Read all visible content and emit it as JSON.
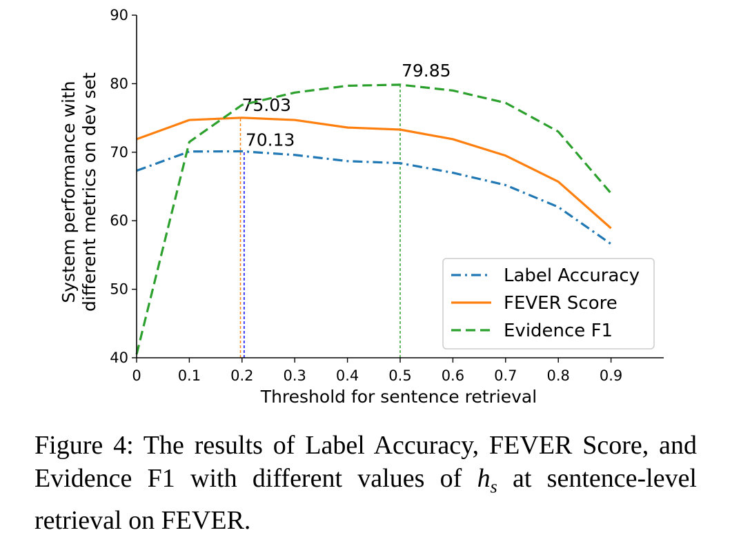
{
  "chart_data": {
    "type": "line",
    "xlabel": "Threshold for sentence retrieval",
    "ylabel_lines": [
      "System performance with",
      "different metrics on dev set"
    ],
    "x": [
      0,
      0.1,
      0.2,
      0.3,
      0.4,
      0.5,
      0.6,
      0.7,
      0.8,
      0.9
    ],
    "x_tick_labels": [
      "0",
      "0.1",
      "0.2",
      "0.3",
      "0.4",
      "0.5",
      "0.6",
      "0.7",
      "0.8",
      "0.9"
    ],
    "y_ticks": [
      40,
      50,
      60,
      70,
      80,
      90
    ],
    "ylim": [
      40,
      90
    ],
    "xlim": [
      0,
      1.0
    ],
    "legend_position": "lower-right",
    "grid": false,
    "series": [
      {
        "name": "Label Accuracy",
        "color": "#1f77b4",
        "dash": "dashdot",
        "values": [
          67.3,
          70.1,
          70.13,
          69.6,
          68.7,
          68.4,
          67.0,
          65.2,
          62.0,
          56.6
        ]
      },
      {
        "name": "FEVER Score",
        "color": "#ff7f0e",
        "dash": "solid",
        "values": [
          71.9,
          74.7,
          75.03,
          74.7,
          73.6,
          73.3,
          71.9,
          69.5,
          65.7,
          58.9
        ]
      },
      {
        "name": "Evidence F1",
        "color": "#2ca02c",
        "dash": "dashed",
        "values": [
          40.5,
          71.5,
          76.9,
          78.7,
          79.7,
          79.85,
          79.0,
          77.2,
          73.0,
          64.0
        ]
      }
    ],
    "annotations": [
      {
        "label": "79.85",
        "x": 0.5,
        "y": 79.85,
        "color": "#2ca02c"
      },
      {
        "label": "75.03",
        "x": 0.197,
        "y": 75.03,
        "color": "#ff7f0e"
      },
      {
        "label": "70.13",
        "x": 0.204,
        "y": 70.13,
        "color": "#0000ff"
      }
    ]
  },
  "caption": {
    "prefix": "Figure 4:  The results of Label Accuracy, FEVER Score, and Evidence F1 with different values of ",
    "math_base": "h",
    "math_sub": "s",
    "suffix": " at sentence-level retrieval on FEVER."
  }
}
